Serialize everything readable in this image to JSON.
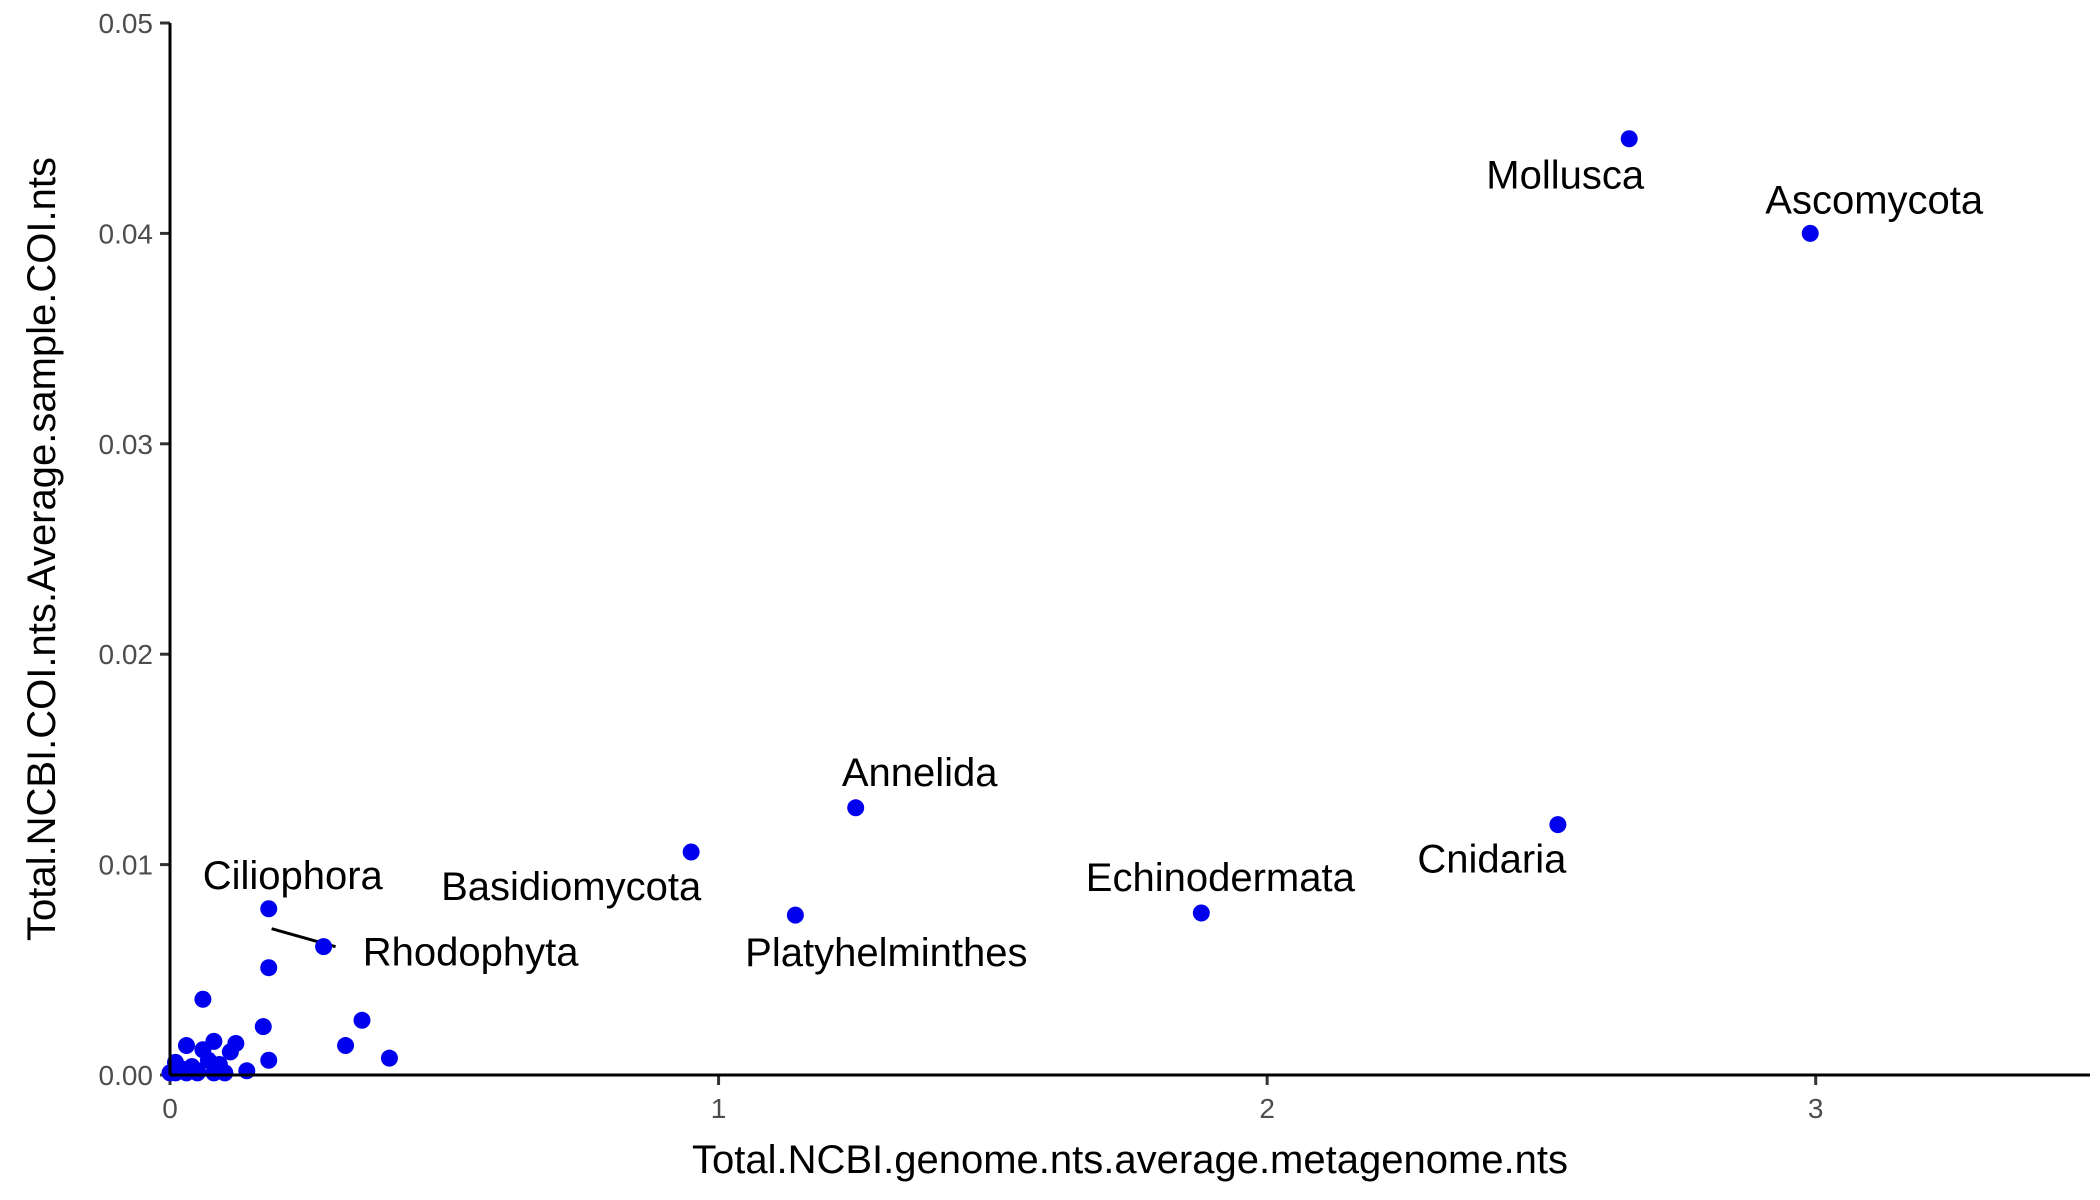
{
  "chart_data": {
    "type": "scatter",
    "title": "",
    "xlabel": "Total.NCBI.genome.nts.average.metagenome.nts",
    "ylabel": "Total.NCBI.COI.nts.Average.sample.COI.nts",
    "xlim": [
      0,
      3.5
    ],
    "ylim": [
      0,
      0.05
    ],
    "x_ticks": [
      0,
      1,
      2,
      3
    ],
    "x_tick_labels": [
      "0",
      "1",
      "2",
      "3"
    ],
    "y_ticks": [
      0,
      0.01,
      0.02,
      0.03,
      0.04,
      0.05
    ],
    "y_tick_labels": [
      "0.00",
      "0.01",
      "0.02",
      "0.03",
      "0.04",
      "0.05"
    ],
    "grid": false,
    "legend": "none",
    "point_color": "#0000ee",
    "points": [
      {
        "x": 2.66,
        "y": 0.0445,
        "label": "Mollusca"
      },
      {
        "x": 2.99,
        "y": 0.04,
        "label": "Ascomycota"
      },
      {
        "x": 1.25,
        "y": 0.0127,
        "label": "Annelida"
      },
      {
        "x": 2.53,
        "y": 0.0119,
        "label": "Cnidaria"
      },
      {
        "x": 0.95,
        "y": 0.0106,
        "label": "Basidiomycota"
      },
      {
        "x": 1.88,
        "y": 0.0077,
        "label": "Echinodermata"
      },
      {
        "x": 1.14,
        "y": 0.0076,
        "label": "Platyhelminthes"
      },
      {
        "x": 0.18,
        "y": 0.0079,
        "label": "Ciliophora"
      },
      {
        "x": 0.28,
        "y": 0.0061,
        "label": "Rhodophyta"
      },
      {
        "x": 0.18,
        "y": 0.0051
      },
      {
        "x": 0.06,
        "y": 0.0036
      },
      {
        "x": 0.35,
        "y": 0.0026
      },
      {
        "x": 0.17,
        "y": 0.0023
      },
      {
        "x": 0.32,
        "y": 0.0014
      },
      {
        "x": 0.4,
        "y": 0.0008
      },
      {
        "x": 0.18,
        "y": 0.0007
      },
      {
        "x": 0.08,
        "y": 0.0016
      },
      {
        "x": 0.12,
        "y": 0.0015
      },
      {
        "x": 0.11,
        "y": 0.0011
      },
      {
        "x": 0.03,
        "y": 0.0014
      },
      {
        "x": 0.06,
        "y": 0.0012
      },
      {
        "x": 0.07,
        "y": 0.0007
      },
      {
        "x": 0.09,
        "y": 0.0005
      },
      {
        "x": 0.14,
        "y": 0.0002
      },
      {
        "x": 0.01,
        "y": 0.0006
      },
      {
        "x": 0.02,
        "y": 0.0003
      },
      {
        "x": 0.04,
        "y": 0.0004
      },
      {
        "x": 0.05,
        "y": 0.0002
      },
      {
        "x": 0.0,
        "y": 0.0001
      },
      {
        "x": 0.01,
        "y": 0.0001
      },
      {
        "x": 0.03,
        "y": 0.0001
      },
      {
        "x": 0.05,
        "y": 0.0001
      },
      {
        "x": 0.08,
        "y": 0.0001
      },
      {
        "x": 0.1,
        "y": 0.0001
      }
    ]
  }
}
